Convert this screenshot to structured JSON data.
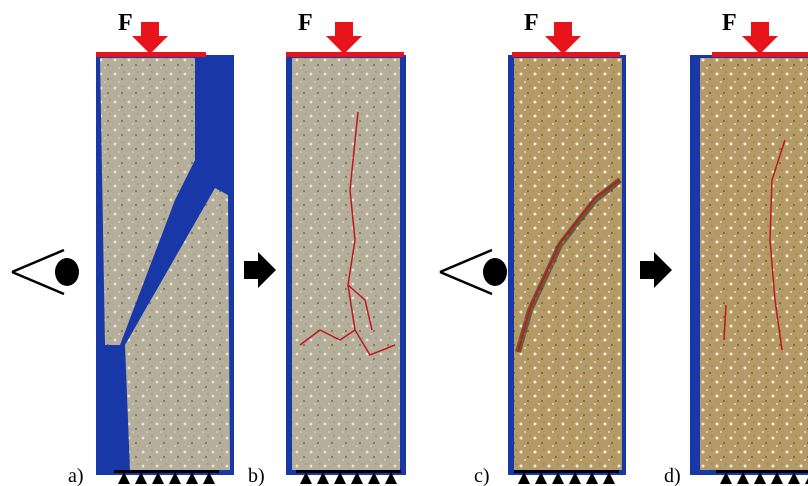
{
  "panels": [
    {
      "force": "F",
      "label": "a)"
    },
    {
      "force": "F",
      "label": "b)"
    },
    {
      "force": "F",
      "label": "c)"
    },
    {
      "force": "F",
      "label": "d)"
    }
  ]
}
